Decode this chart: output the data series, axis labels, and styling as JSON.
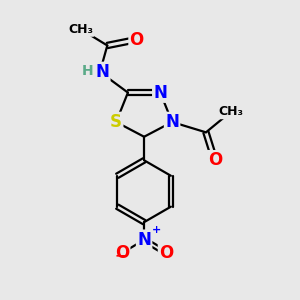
{
  "bg_color": "#e8e8e8",
  "atom_colors": {
    "C": "#000000",
    "N": "#0000ff",
    "O": "#ff0000",
    "S": "#cccc00",
    "H": "#5aaa88"
  },
  "bond_color": "#000000",
  "font_size": 11,
  "small_font": 9,
  "lw": 1.6
}
